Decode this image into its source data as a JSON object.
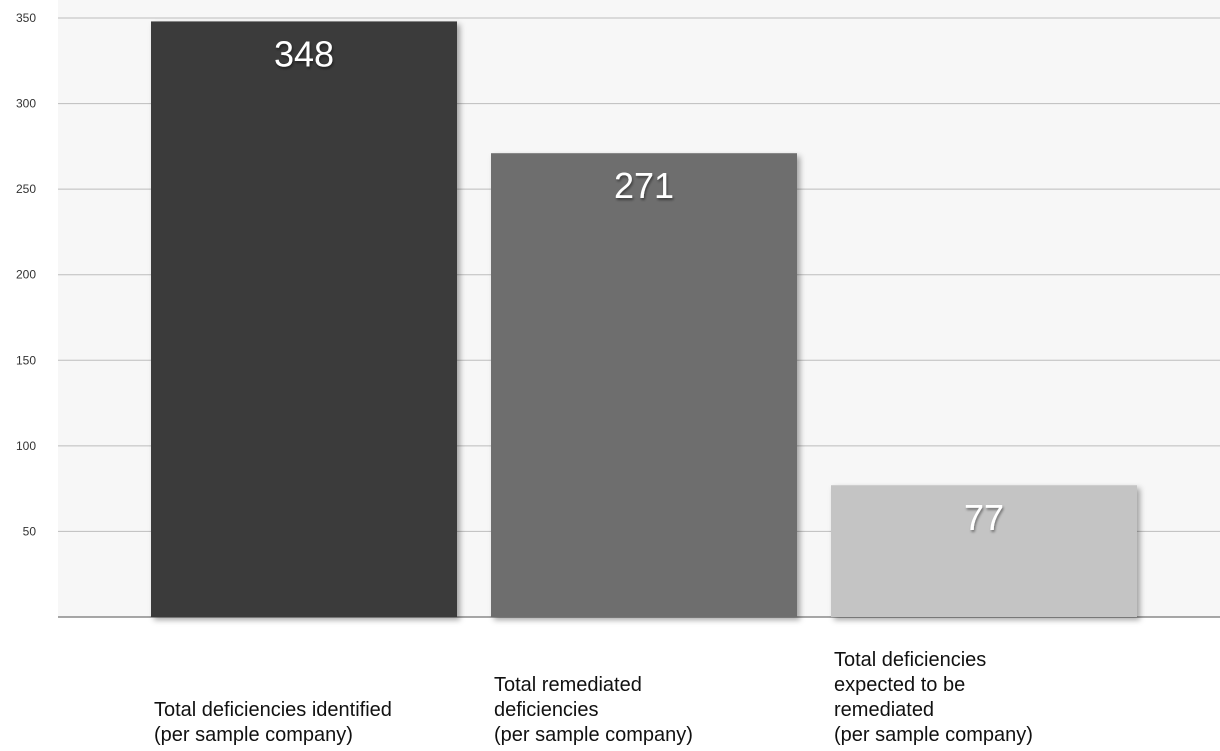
{
  "chart_data": {
    "type": "bar",
    "categories": [
      "Total deficiencies identified\n (per sample company)",
      "Total remediated\ndeficiencies\n(per sample company)",
      "Total deficiencies\nexpected to be\nremediated\n(per sample company)"
    ],
    "values": [
      348,
      271,
      77
    ],
    "data_labels": [
      "348",
      "271",
      "77"
    ],
    "bar_colors": [
      "#3a3a3a",
      "#6e6e6e",
      "#c4c4c4"
    ],
    "ylim": [
      0,
      350
    ],
    "yticks": [
      50,
      100,
      150,
      200,
      250,
      300,
      350
    ],
    "ytick_labels": [
      "50",
      "100",
      "150",
      "200",
      "250",
      "300",
      "350"
    ],
    "grid": true,
    "title": "",
    "xlabel": "",
    "ylabel": ""
  }
}
